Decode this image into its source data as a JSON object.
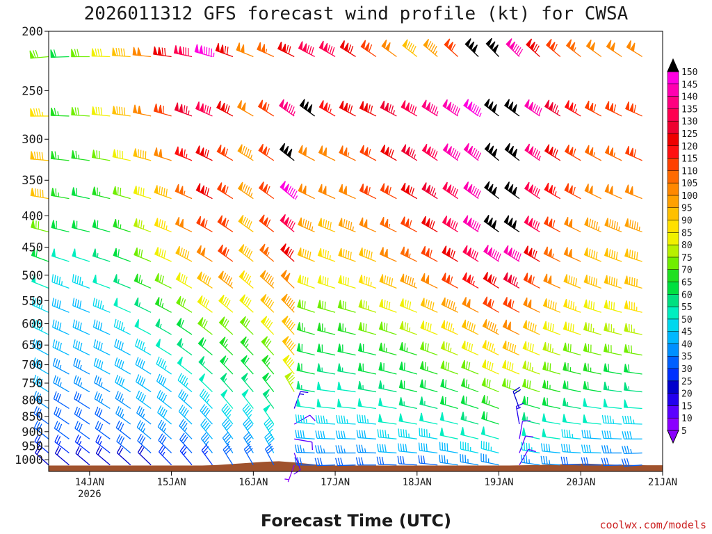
{
  "chart_data": {
    "type": "wind_barbs",
    "title": "2026011312 GFS forecast wind profile (kt) for CWSA",
    "xlabel": "Forecast Time (UTC)",
    "ylabel": "",
    "y_axis": {
      "scale": "log",
      "reversed": true,
      "range": [
        200,
        1045
      ],
      "ticks": [
        200,
        250,
        300,
        350,
        400,
        450,
        500,
        550,
        600,
        650,
        700,
        750,
        800,
        850,
        900,
        950,
        1000
      ]
    },
    "x_axis": {
      "range": [
        "2026-01-13T12:00Z",
        "2026-01-21T00:00Z"
      ],
      "tick_dates": [
        "2026-01-14",
        "2026-01-15",
        "2026-01-16",
        "2026-01-17",
        "2026-01-18",
        "2026-01-19",
        "2026-01-20",
        "2026-01-21"
      ],
      "tick_labels": [
        "14JAN",
        "15JAN",
        "16JAN",
        "17JAN",
        "18JAN",
        "19JAN",
        "20JAN",
        "21JAN"
      ],
      "year_label": "2026"
    },
    "colorbar": {
      "levels": [
        5,
        10,
        15,
        20,
        25,
        30,
        35,
        40,
        45,
        50,
        55,
        60,
        65,
        70,
        75,
        80,
        85,
        90,
        95,
        100,
        105,
        110,
        115,
        120,
        125,
        130,
        135,
        140,
        145,
        150
      ],
      "colors": [
        "#8a00ff",
        "#5a00ff",
        "#2200ee",
        "#0000cc",
        "#0030ff",
        "#0060ff",
        "#0090ff",
        "#00b8ff",
        "#00d8ee",
        "#00eec0",
        "#00e080",
        "#00e040",
        "#20e020",
        "#70ee00",
        "#b8f000",
        "#f0f000",
        "#ffe000",
        "#ffc000",
        "#ffa000",
        "#ff8800",
        "#ff6a00",
        "#ff4000",
        "#ff1010",
        "#ee0000",
        "#ee0030",
        "#ff0050",
        "#ff0080",
        "#ff00b0",
        "#ff00e0",
        "#000000"
      ]
    },
    "times_hours": [
      0,
      6,
      12,
      18,
      24,
      30,
      36,
      42,
      48,
      54,
      60,
      66,
      72,
      78,
      84,
      90,
      96,
      102,
      108,
      114,
      120,
      126,
      132,
      138,
      144,
      150,
      156,
      162,
      168,
      174
    ],
    "levels_hpa": [
      220,
      275,
      325,
      375,
      425,
      475,
      525,
      575,
      625,
      675,
      725,
      775,
      825,
      875,
      925,
      975,
      1020
    ],
    "speed_kt": [
      [
        70,
        62,
        68,
        80,
        90,
        102,
        118,
        130,
        145,
        120,
        100,
        105,
        120,
        128,
        130,
        120,
        110,
        100,
        90,
        95,
        110,
        150,
        150,
        140,
        120,
        110,
        105,
        100,
        100,
        102
      ],
      [
        85,
        65,
        70,
        80,
        90,
        100,
        110,
        125,
        130,
        120,
        100,
        110,
        135,
        150,
        115,
        118,
        120,
        125,
        130,
        135,
        140,
        145,
        150,
        150,
        140,
        125,
        115,
        110,
        108,
        110
      ],
      [
        88,
        65,
        65,
        70,
        78,
        88,
        100,
        115,
        120,
        110,
        95,
        110,
        150,
        100,
        102,
        105,
        112,
        118,
        125,
        128,
        138,
        142,
        150,
        150,
        135,
        120,
        110,
        105,
        105,
        108
      ],
      [
        92,
        65,
        62,
        66,
        72,
        82,
        92,
        105,
        118,
        112,
        95,
        110,
        145,
        98,
        98,
        100,
        108,
        112,
        118,
        124,
        132,
        140,
        150,
        150,
        132,
        115,
        108,
        100,
        98,
        100
      ],
      [
        70,
        60,
        58,
        60,
        65,
        75,
        85,
        100,
        112,
        112,
        92,
        108,
        130,
        95,
        92,
        95,
        100,
        106,
        112,
        118,
        128,
        138,
        148,
        150,
        128,
        110,
        102,
        96,
        95,
        96
      ],
      [
        62,
        50,
        50,
        55,
        62,
        70,
        80,
        92,
        100,
        108,
        88,
        104,
        118,
        90,
        86,
        88,
        92,
        98,
        104,
        110,
        118,
        128,
        138,
        138,
        118,
        104,
        98,
        92,
        92,
        92
      ],
      [
        48,
        45,
        45,
        50,
        56,
        64,
        72,
        82,
        90,
        95,
        84,
        96,
        100,
        82,
        80,
        82,
        86,
        90,
        95,
        100,
        108,
        115,
        122,
        125,
        108,
        98,
        92,
        88,
        88,
        90
      ],
      [
        46,
        42,
        42,
        46,
        50,
        56,
        64,
        72,
        80,
        82,
        78,
        88,
        95,
        72,
        70,
        72,
        75,
        78,
        82,
        88,
        95,
        100,
        108,
        110,
        98,
        90,
        85,
        82,
        82,
        84
      ],
      [
        44,
        40,
        40,
        42,
        45,
        50,
        56,
        62,
        70,
        72,
        70,
        80,
        92,
        66,
        64,
        65,
        68,
        70,
        74,
        78,
        84,
        90,
        96,
        98,
        90,
        82,
        78,
        75,
        74,
        76
      ],
      [
        42,
        38,
        38,
        40,
        42,
        46,
        50,
        56,
        62,
        66,
        64,
        72,
        88,
        62,
        60,
        60,
        62,
        64,
        66,
        70,
        75,
        80,
        86,
        88,
        82,
        76,
        72,
        70,
        68,
        68
      ],
      [
        40,
        36,
        36,
        38,
        40,
        42,
        46,
        50,
        56,
        60,
        58,
        66,
        80,
        58,
        56,
        56,
        58,
        60,
        62,
        64,
        68,
        72,
        78,
        80,
        75,
        70,
        66,
        64,
        62,
        62
      ],
      [
        38,
        34,
        34,
        36,
        38,
        40,
        42,
        46,
        50,
        55,
        54,
        60,
        74,
        54,
        52,
        52,
        54,
        56,
        58,
        60,
        62,
        66,
        70,
        72,
        68,
        64,
        60,
        58,
        56,
        56
      ],
      [
        35,
        32,
        32,
        34,
        36,
        38,
        40,
        42,
        45,
        50,
        50,
        55,
        15,
        50,
        48,
        48,
        50,
        52,
        54,
        55,
        58,
        60,
        64,
        20,
        60,
        58,
        55,
        52,
        50,
        50
      ],
      [
        32,
        30,
        30,
        32,
        34,
        35,
        38,
        40,
        42,
        45,
        45,
        50,
        12,
        46,
        44,
        44,
        46,
        48,
        50,
        50,
        52,
        55,
        58,
        15,
        55,
        52,
        50,
        48,
        46,
        45
      ],
      [
        30,
        28,
        28,
        30,
        32,
        34,
        35,
        36,
        38,
        40,
        40,
        45,
        10,
        42,
        40,
        40,
        42,
        44,
        45,
        45,
        48,
        50,
        52,
        12,
        50,
        48,
        45,
        42,
        40,
        40
      ],
      [
        26,
        25,
        25,
        26,
        28,
        30,
        30,
        32,
        34,
        35,
        35,
        40,
        8,
        36,
        35,
        35,
        36,
        38,
        40,
        40,
        42,
        44,
        45,
        10,
        45,
        42,
        40,
        38,
        36,
        35
      ],
      [
        20,
        18,
        18,
        20,
        20,
        22,
        24,
        25,
        26,
        28,
        28,
        30,
        5,
        30,
        28,
        28,
        30,
        30,
        32,
        32,
        34,
        35,
        36,
        10,
        36,
        34,
        32,
        30,
        28,
        28
      ]
    ],
    "direction_deg": [
      [
        265,
        268,
        270,
        272,
        274,
        276,
        278,
        282,
        286,
        290,
        292,
        294,
        296,
        298,
        300,
        302,
        304,
        306,
        308,
        310,
        312,
        314,
        316,
        314,
        312,
        310,
        308,
        306,
        304,
        302
      ],
      [
        270,
        272,
        274,
        276,
        278,
        282,
        286,
        290,
        294,
        298,
        300,
        302,
        305,
        306,
        300,
        298,
        296,
        298,
        300,
        302,
        304,
        306,
        308,
        306,
        304,
        302,
        300,
        298,
        296,
        294
      ],
      [
        275,
        276,
        278,
        280,
        282,
        285,
        288,
        292,
        296,
        300,
        302,
        304,
        308,
        298,
        296,
        296,
        298,
        300,
        302,
        304,
        306,
        308,
        310,
        308,
        305,
        302,
        300,
        298,
        296,
        294
      ],
      [
        280,
        280,
        282,
        284,
        286,
        288,
        290,
        294,
        298,
        302,
        304,
        306,
        310,
        296,
        294,
        294,
        296,
        298,
        300,
        302,
        304,
        306,
        308,
        306,
        304,
        300,
        298,
        296,
        294,
        292
      ],
      [
        285,
        284,
        284,
        286,
        288,
        290,
        292,
        296,
        300,
        304,
        306,
        308,
        310,
        294,
        292,
        292,
        294,
        296,
        298,
        300,
        302,
        304,
        306,
        304,
        302,
        298,
        296,
        294,
        292,
        290
      ],
      [
        290,
        288,
        288,
        288,
        290,
        292,
        294,
        298,
        302,
        306,
        308,
        310,
        312,
        292,
        290,
        290,
        292,
        294,
        296,
        298,
        300,
        302,
        304,
        302,
        300,
        296,
        294,
        292,
        290,
        288
      ],
      [
        292,
        290,
        290,
        290,
        292,
        294,
        296,
        300,
        304,
        308,
        310,
        312,
        314,
        290,
        288,
        288,
        290,
        292,
        294,
        296,
        298,
        300,
        302,
        300,
        298,
        294,
        292,
        290,
        288,
        286
      ],
      [
        294,
        292,
        292,
        292,
        294,
        296,
        298,
        302,
        306,
        310,
        312,
        314,
        316,
        288,
        286,
        286,
        288,
        290,
        292,
        294,
        296,
        298,
        300,
        298,
        296,
        292,
        290,
        288,
        286,
        284
      ],
      [
        296,
        294,
        294,
        294,
        296,
        298,
        300,
        304,
        308,
        312,
        314,
        316,
        318,
        286,
        284,
        284,
        286,
        288,
        290,
        292,
        294,
        296,
        298,
        296,
        294,
        290,
        288,
        286,
        284,
        282
      ],
      [
        298,
        296,
        296,
        296,
        298,
        300,
        302,
        306,
        310,
        314,
        316,
        318,
        320,
        284,
        282,
        282,
        284,
        286,
        288,
        290,
        292,
        294,
        296,
        294,
        292,
        288,
        286,
        284,
        282,
        280
      ],
      [
        300,
        298,
        298,
        298,
        300,
        302,
        304,
        308,
        312,
        316,
        318,
        320,
        322,
        282,
        280,
        280,
        282,
        284,
        286,
        288,
        290,
        292,
        294,
        292,
        290,
        286,
        284,
        282,
        280,
        278
      ],
      [
        302,
        300,
        300,
        300,
        302,
        304,
        306,
        310,
        314,
        318,
        320,
        322,
        330,
        280,
        278,
        278,
        280,
        282,
        284,
        286,
        288,
        290,
        292,
        290,
        288,
        284,
        282,
        280,
        278,
        276
      ],
      [
        304,
        302,
        302,
        302,
        304,
        306,
        308,
        312,
        316,
        320,
        322,
        324,
        20,
        278,
        276,
        276,
        278,
        280,
        282,
        284,
        286,
        288,
        290,
        340,
        286,
        282,
        280,
        278,
        276,
        274
      ],
      [
        306,
        304,
        304,
        304,
        306,
        308,
        310,
        314,
        318,
        322,
        324,
        326,
        60,
        276,
        274,
        274,
        276,
        278,
        280,
        282,
        284,
        286,
        288,
        350,
        284,
        280,
        278,
        276,
        274,
        272
      ],
      [
        308,
        306,
        306,
        306,
        308,
        310,
        312,
        316,
        320,
        324,
        326,
        328,
        100,
        274,
        272,
        272,
        274,
        276,
        278,
        280,
        282,
        284,
        286,
        10,
        282,
        278,
        276,
        274,
        272,
        270
      ],
      [
        310,
        308,
        308,
        308,
        310,
        312,
        314,
        318,
        322,
        326,
        328,
        330,
        160,
        272,
        270,
        270,
        272,
        274,
        276,
        278,
        280,
        282,
        284,
        20,
        280,
        276,
        274,
        272,
        270,
        268
      ],
      [
        312,
        310,
        310,
        310,
        312,
        314,
        316,
        320,
        324,
        328,
        330,
        332,
        200,
        270,
        268,
        268,
        270,
        272,
        274,
        276,
        278,
        280,
        282,
        30,
        278,
        274,
        272,
        270,
        268,
        266
      ]
    ],
    "terrain": {
      "color": "#a0522d",
      "surface_pressure_hpa": [
        1022,
        1022,
        1022,
        1022,
        1022,
        1022,
        1022,
        1022,
        1022,
        1022,
        1022,
        1020,
        1016,
        1012,
        1008,
        1006,
        1010,
        1016,
        1022,
        1022,
        1022,
        1022,
        1022,
        1022,
        1022,
        1022,
        1022,
        1022,
        1022,
        1022,
        1022,
        1021,
        1020,
        1018,
        1016,
        1015,
        1017,
        1019,
        1020,
        1021,
        1021
      ]
    },
    "grid": false,
    "legend": "colorbar-right"
  },
  "credit": "coolwx.com/models"
}
